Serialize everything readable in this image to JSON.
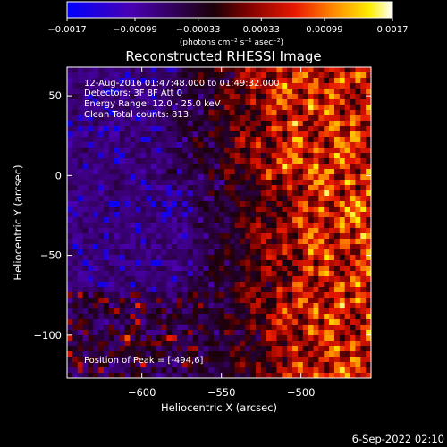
{
  "chart_data": {
    "type": "heatmap",
    "title": "Reconstructed RHESSI Image",
    "xlabel": "Heliocentric X (arcsec)",
    "ylabel": "Heliocentric Y (arcsec)",
    "xlim": [
      -647,
      -456
    ],
    "ylim": [
      -127,
      68
    ],
    "xticks": [
      -600,
      -550,
      -500
    ],
    "yticks": [
      50,
      0,
      -50,
      -100
    ],
    "xtick_labels": [
      "−600",
      "−550",
      "−500"
    ],
    "ytick_labels": [
      "50",
      "0",
      "−50",
      "−100"
    ],
    "colorbar": {
      "min": -0.0017,
      "max": 0.0017,
      "tick_labels": [
        "−0.0017",
        "−0.00099",
        "−0.00033",
        "0.00033",
        "0.00099",
        "0.0017"
      ],
      "ticks": [
        -0.0017,
        -0.00099,
        -0.00033,
        0.00033,
        0.00099,
        0.0017
      ],
      "units": "(photons cm⁻² s⁻¹ asec⁻²)",
      "colors": [
        "#0000ff",
        "#5000a0",
        "#000000",
        "#a00000",
        "#ff2000",
        "#ff9a00",
        "#ffff00",
        "#ffffff"
      ]
    },
    "grid": false,
    "annotations": [
      "12-Aug-2016 01:47:48.000 to 01:49:32.000",
      "Detectors: 3F 8F  Att 0",
      "Energy Range: 12.0 - 25.0 keV",
      "Clean    Total counts: 813.",
      "Position of Peak = [-494,6]"
    ],
    "peak": [
      -494,
      6
    ]
  },
  "footer_date": "6-Sep-2022 02:10"
}
